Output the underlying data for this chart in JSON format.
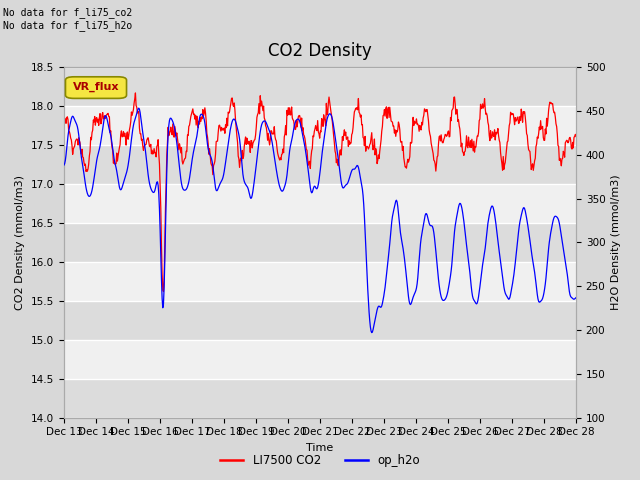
{
  "title": "CO2 Density",
  "xlabel": "Time",
  "ylabel_left": "CO2 Density (mmol/m3)",
  "ylabel_right": "H2O Density (mmol/m3)",
  "ylim_left": [
    14.0,
    18.5
  ],
  "ylim_right": [
    100,
    500
  ],
  "yticks_left": [
    14.0,
    14.5,
    15.0,
    15.5,
    16.0,
    16.5,
    17.0,
    17.5,
    18.0,
    18.5
  ],
  "yticks_right": [
    100,
    150,
    200,
    250,
    300,
    350,
    400,
    450,
    500
  ],
  "xtick_labels": [
    "Dec 13",
    "Dec 14",
    "Dec 15",
    "Dec 16",
    "Dec 17",
    "Dec 18",
    "Dec 19",
    "Dec 20",
    "Dec 21",
    "Dec 22",
    "Dec 23",
    "Dec 24",
    "Dec 25",
    "Dec 26",
    "Dec 27",
    "Dec 28"
  ],
  "annotation_text": "No data for f_li75_co2\nNo data for f_li75_h2o",
  "vr_flux_label": "VR_flux",
  "legend_entries": [
    "LI7500 CO2",
    "op_h2o"
  ],
  "line_colors": [
    "red",
    "blue"
  ],
  "bg_outer": "#d8d8d8",
  "bg_inner": "#f0f0f0",
  "bg_stripe_dark": "#dcdcdc",
  "title_fontsize": 12,
  "label_fontsize": 8,
  "tick_fontsize": 7.5
}
